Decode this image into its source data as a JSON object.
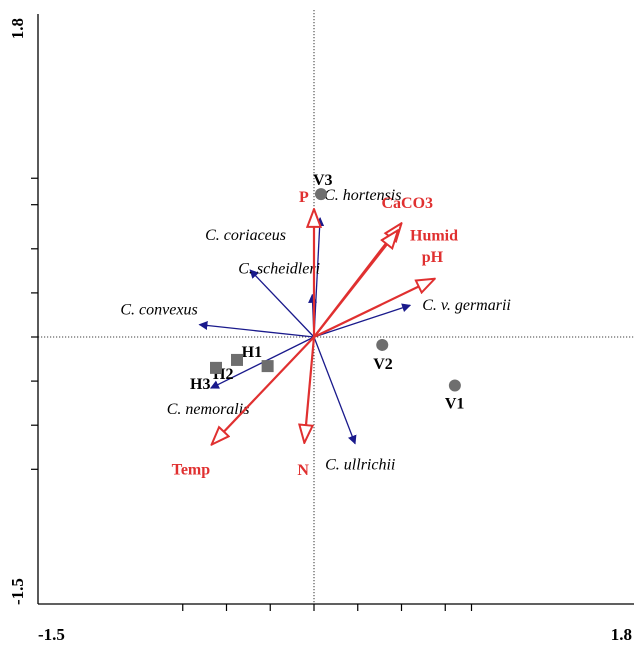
{
  "chart_data": {
    "type": "biplot",
    "xlim": [
      -1.5,
      1.8
    ],
    "ylim": [
      -1.5,
      1.8
    ],
    "axis_tick_labels": {
      "x_min": "-1.5",
      "x_max": "1.8",
      "y_min": "-1.5",
      "y_max": "1.8"
    },
    "colors": {
      "species_arrow": "#1a1a8c",
      "environment_arrow": "#e03030",
      "environment_label": "#e03030",
      "site_marker": "#6e6e6e",
      "axis": "#000000"
    },
    "species": [
      {
        "label": "C. hortensis",
        "x": 0.07,
        "y": 1.35
      },
      {
        "label": "C. coriaceus",
        "x": -0.73,
        "y": 0.76
      },
      {
        "label": "C. scheidleri",
        "x": -0.02,
        "y": 0.48
      },
      {
        "label": "C. convexus",
        "x": -1.31,
        "y": 0.14
      },
      {
        "label": "C. v. germarii",
        "x": 1.1,
        "y": 0.36
      },
      {
        "label": "C. nemoralis",
        "x": -1.18,
        "y": -0.58
      },
      {
        "label": "C. ullrichii",
        "x": 0.47,
        "y": -1.21
      }
    ],
    "environment": [
      {
        "label": "P",
        "x": 0.0,
        "y": 1.45
      },
      {
        "label": "CaCO3",
        "x": 1.0,
        "y": 1.29
      },
      {
        "label": "Humid",
        "x": 0.96,
        "y": 1.21
      },
      {
        "label": "pH",
        "x": 1.38,
        "y": 0.66
      },
      {
        "label": "Temp",
        "x": -1.17,
        "y": -1.22
      },
      {
        "label": "N",
        "x": -0.11,
        "y": -1.2
      }
    ],
    "sites": [
      {
        "label": "V3",
        "x": 0.08,
        "y": 1.62,
        "marker": "circle"
      },
      {
        "label": "V2",
        "x": 0.78,
        "y": -0.09,
        "marker": "circle"
      },
      {
        "label": "V1",
        "x": 1.61,
        "y": -0.55,
        "marker": "circle"
      },
      {
        "label": "H1",
        "x": -0.53,
        "y": -0.33,
        "marker": "square"
      },
      {
        "label": "H2",
        "x": -0.88,
        "y": -0.26,
        "marker": "square"
      },
      {
        "label": "H3",
        "x": -1.12,
        "y": -0.35,
        "marker": "square"
      }
    ]
  }
}
